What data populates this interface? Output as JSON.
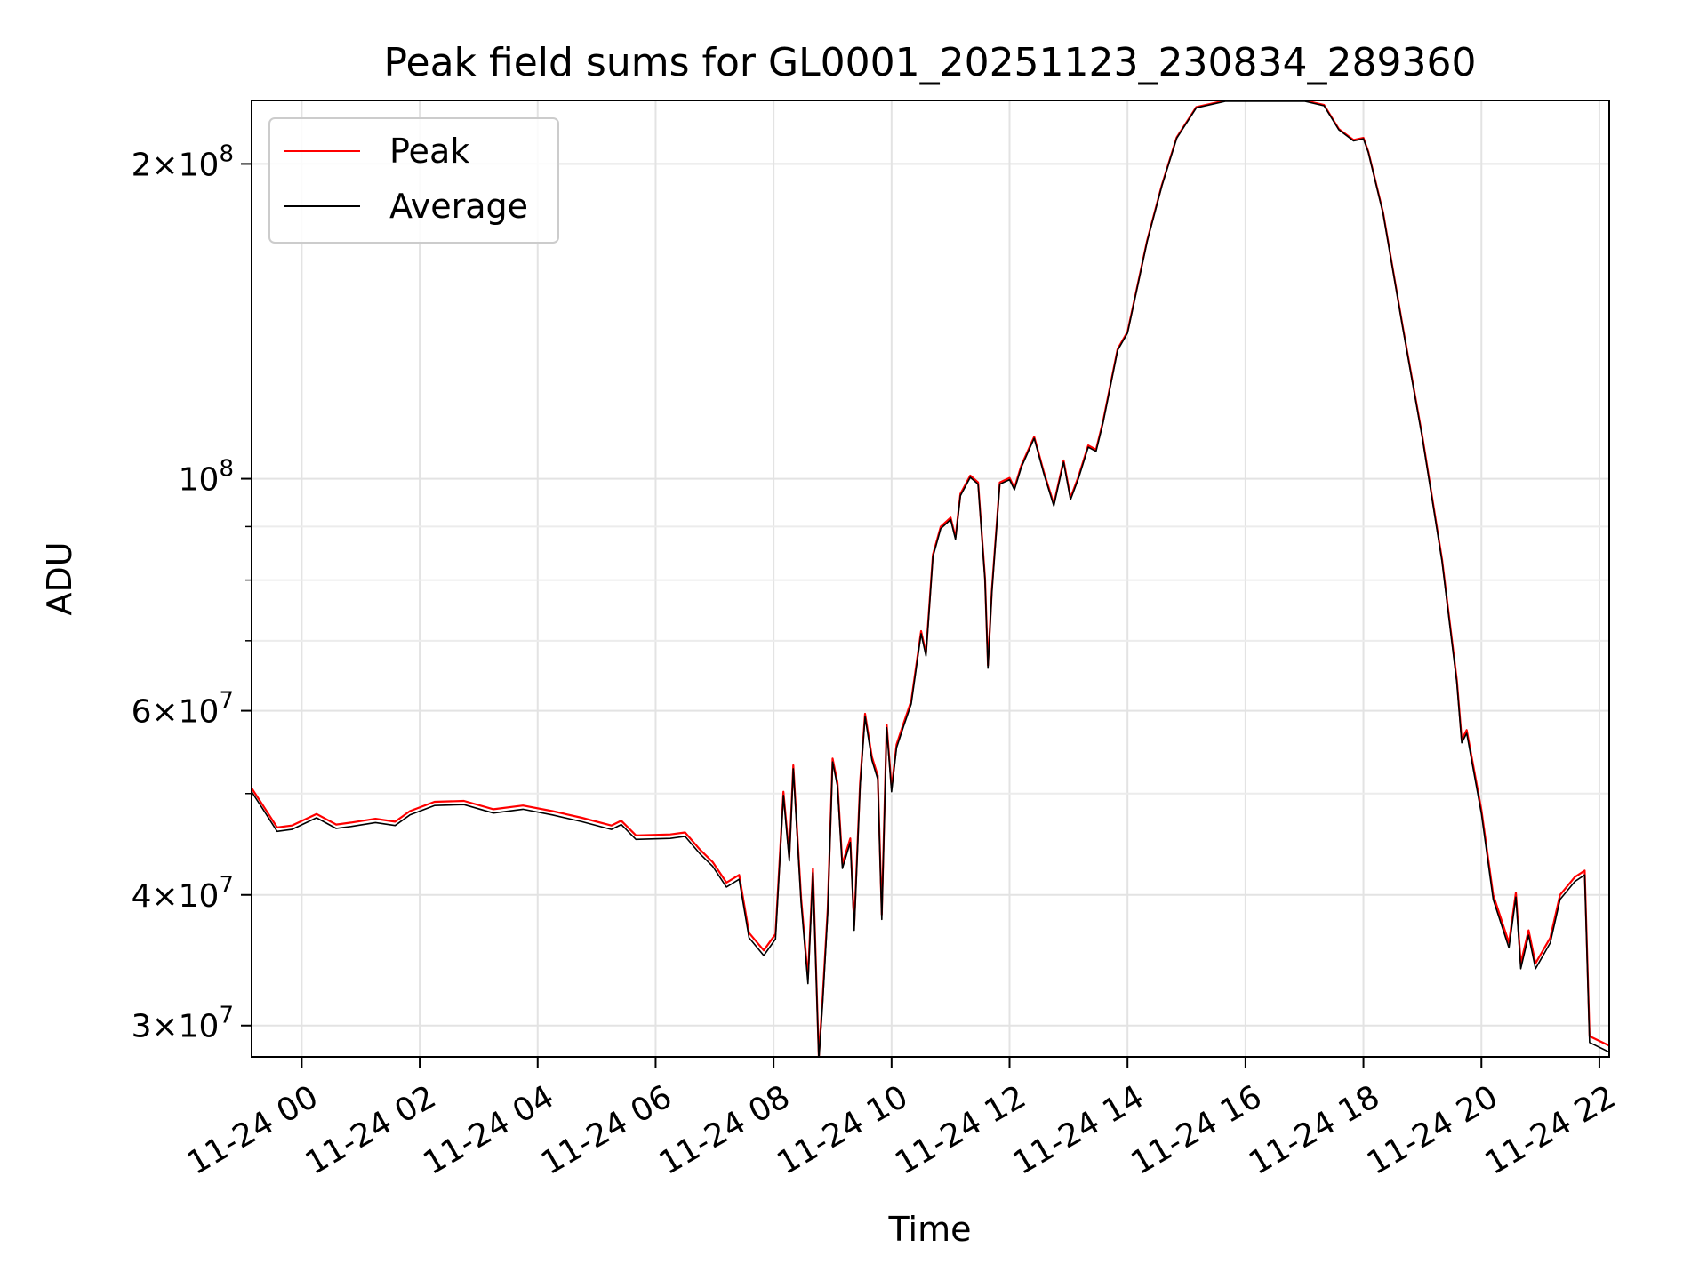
{
  "chart_data": {
    "type": "line",
    "title": "Peak field sums for GL0001_20251123_230834_289360",
    "xlabel": "Time",
    "ylabel": "ADU",
    "y_scale": "log",
    "ylim": [
      28000000,
      230000000
    ],
    "xlim": [
      "2025-11-23T23:09",
      "2025-11-24T22:10"
    ],
    "grid": true,
    "legend_position": "upper-left",
    "x_ticks": [
      {
        "t": "2025-11-24T00:00",
        "label": "11-24 00"
      },
      {
        "t": "2025-11-24T02:00",
        "label": "11-24 02"
      },
      {
        "t": "2025-11-24T04:00",
        "label": "11-24 04"
      },
      {
        "t": "2025-11-24T06:00",
        "label": "11-24 06"
      },
      {
        "t": "2025-11-24T08:00",
        "label": "11-24 08"
      },
      {
        "t": "2025-11-24T10:00",
        "label": "11-24 10"
      },
      {
        "t": "2025-11-24T12:00",
        "label": "11-24 12"
      },
      {
        "t": "2025-11-24T14:00",
        "label": "11-24 14"
      },
      {
        "t": "2025-11-24T16:00",
        "label": "11-24 16"
      },
      {
        "t": "2025-11-24T18:00",
        "label": "11-24 18"
      },
      {
        "t": "2025-11-24T20:00",
        "label": "11-24 20"
      },
      {
        "t": "2025-11-24T22:00",
        "label": "11-24 22"
      }
    ],
    "y_major_ticks": [
      {
        "value": 30000000,
        "mantissa": "3",
        "exp": "7"
      },
      {
        "value": 40000000,
        "mantissa": "4",
        "exp": "7"
      },
      {
        "value": 60000000,
        "mantissa": "6",
        "exp": "7"
      },
      {
        "value": 100000000,
        "mantissa": "",
        "exp": "8"
      },
      {
        "value": 200000000,
        "mantissa": "2",
        "exp": "8"
      }
    ],
    "y_minor_grid": [
      50000000,
      70000000,
      80000000,
      90000000
    ],
    "series": [
      {
        "name": "Peak",
        "color": "#ff0000",
        "points": [
          [
            "2025-11-23T23:09",
            50600000
          ],
          [
            "2025-11-23T23:20",
            48800000
          ],
          [
            "2025-11-23T23:35",
            46400000
          ],
          [
            "2025-11-23T23:50",
            46600000
          ],
          [
            "2025-11-24T00:15",
            47800000
          ],
          [
            "2025-11-24T00:35",
            46700000
          ],
          [
            "2025-11-24T00:50",
            46900000
          ],
          [
            "2025-11-24T01:15",
            47300000
          ],
          [
            "2025-11-24T01:35",
            47000000
          ],
          [
            "2025-11-24T01:50",
            48100000
          ],
          [
            "2025-11-24T02:15",
            49100000
          ],
          [
            "2025-11-24T02:45",
            49200000
          ],
          [
            "2025-11-24T03:15",
            48300000
          ],
          [
            "2025-11-24T03:45",
            48700000
          ],
          [
            "2025-11-24T04:15",
            48100000
          ],
          [
            "2025-11-24T04:45",
            47400000
          ],
          [
            "2025-11-24T05:15",
            46600000
          ],
          [
            "2025-11-24T05:25",
            47100000
          ],
          [
            "2025-11-24T05:40",
            45600000
          ],
          [
            "2025-11-24T06:15",
            45700000
          ],
          [
            "2025-11-24T06:30",
            45900000
          ],
          [
            "2025-11-24T06:45",
            44200000
          ],
          [
            "2025-11-24T06:58",
            43000000
          ],
          [
            "2025-11-24T07:12",
            41100000
          ],
          [
            "2025-11-24T07:25",
            41800000
          ],
          [
            "2025-11-24T07:35",
            36800000
          ],
          [
            "2025-11-24T07:50",
            35400000
          ],
          [
            "2025-11-24T08:02",
            36700000
          ],
          [
            "2025-11-24T08:10",
            50200000
          ],
          [
            "2025-11-24T08:16",
            43500000
          ],
          [
            "2025-11-24T08:20",
            53200000
          ],
          [
            "2025-11-24T08:28",
            39700000
          ],
          [
            "2025-11-24T08:35",
            33300000
          ],
          [
            "2025-11-24T08:40",
            42400000
          ],
          [
            "2025-11-24T08:46",
            28000000
          ],
          [
            "2025-11-24T08:50",
            32000000
          ],
          [
            "2025-11-24T08:55",
            38800000
          ],
          [
            "2025-11-24T09:00",
            54000000
          ],
          [
            "2025-11-24T09:05",
            51200000
          ],
          [
            "2025-11-24T09:10",
            42800000
          ],
          [
            "2025-11-24T09:18",
            45300000
          ],
          [
            "2025-11-24T09:22",
            37400000
          ],
          [
            "2025-11-24T09:28",
            51200000
          ],
          [
            "2025-11-24T09:33",
            59600000
          ],
          [
            "2025-11-24T09:40",
            54200000
          ],
          [
            "2025-11-24T09:46",
            52000000
          ],
          [
            "2025-11-24T09:50",
            38300000
          ],
          [
            "2025-11-24T09:55",
            58200000
          ],
          [
            "2025-11-24T10:00",
            50600000
          ],
          [
            "2025-11-24T10:05",
            55700000
          ],
          [
            "2025-11-24T10:12",
            58300000
          ],
          [
            "2025-11-24T10:20",
            61300000
          ],
          [
            "2025-11-24T10:30",
            71500000
          ],
          [
            "2025-11-24T10:35",
            68100000
          ],
          [
            "2025-11-24T10:42",
            84600000
          ],
          [
            "2025-11-24T10:50",
            90000000
          ],
          [
            "2025-11-24T11:00",
            91800000
          ],
          [
            "2025-11-24T11:05",
            87900000
          ],
          [
            "2025-11-24T11:10",
            96700000
          ],
          [
            "2025-11-24T11:20",
            100700000
          ],
          [
            "2025-11-24T11:28",
            99200000
          ],
          [
            "2025-11-24T11:35",
            80300000
          ],
          [
            "2025-11-24T11:38",
            66300000
          ],
          [
            "2025-11-24T11:42",
            78300000
          ],
          [
            "2025-11-24T11:50",
            99200000
          ],
          [
            "2025-11-24T12:00",
            100200000
          ],
          [
            "2025-11-24T12:05",
            98000000
          ],
          [
            "2025-11-24T12:12",
            103000000
          ],
          [
            "2025-11-24T12:25",
            109700000
          ],
          [
            "2025-11-24T12:35",
            101400000
          ],
          [
            "2025-11-24T12:45",
            94600000
          ],
          [
            "2025-11-24T12:55",
            104100000
          ],
          [
            "2025-11-24T13:02",
            95900000
          ],
          [
            "2025-11-24T13:10",
            100400000
          ],
          [
            "2025-11-24T13:20",
            107600000
          ],
          [
            "2025-11-24T13:28",
            106600000
          ],
          [
            "2025-11-24T13:35",
            113400000
          ],
          [
            "2025-11-24T13:50",
            133100000
          ],
          [
            "2025-11-24T14:00",
            138200000
          ],
          [
            "2025-11-24T14:20",
            169000000
          ],
          [
            "2025-11-24T14:35",
            191000000
          ],
          [
            "2025-11-24T14:50",
            212000000
          ],
          [
            "2025-11-24T15:10",
            226700000
          ],
          [
            "2025-11-24T15:40",
            230000000
          ],
          [
            "2025-11-24T16:20",
            230000000
          ],
          [
            "2025-11-24T17:00",
            230000000
          ],
          [
            "2025-11-24T17:20",
            227700000
          ],
          [
            "2025-11-24T17:35",
            216000000
          ],
          [
            "2025-11-24T17:50",
            210800000
          ],
          [
            "2025-11-24T18:00",
            211800000
          ],
          [
            "2025-11-24T18:05",
            205500000
          ],
          [
            "2025-11-24T18:20",
            179700000
          ],
          [
            "2025-11-24T18:40",
            139800000
          ],
          [
            "2025-11-24T19:00",
            109700000
          ],
          [
            "2025-11-24T19:20",
            83700000
          ],
          [
            "2025-11-24T19:35",
            64200000
          ],
          [
            "2025-11-24T19:40",
            56300000
          ],
          [
            "2025-11-24T19:45",
            57500000
          ],
          [
            "2025-11-24T20:00",
            48200000
          ],
          [
            "2025-11-24T20:12",
            40000000
          ],
          [
            "2025-11-24T20:28",
            36000000
          ],
          [
            "2025-11-24T20:35",
            40200000
          ],
          [
            "2025-11-24T20:40",
            34400000
          ],
          [
            "2025-11-24T20:48",
            37000000
          ],
          [
            "2025-11-24T20:55",
            34400000
          ],
          [
            "2025-11-24T21:10",
            36400000
          ],
          [
            "2025-11-24T21:20",
            40000000
          ],
          [
            "2025-11-24T21:35",
            41600000
          ],
          [
            "2025-11-24T21:45",
            42200000
          ],
          [
            "2025-11-24T21:50",
            29300000
          ],
          [
            "2025-11-24T22:10",
            28700000
          ]
        ]
      },
      {
        "name": "Average",
        "color": "#000000",
        "points": [
          [
            "2025-11-23T23:09",
            50200000
          ],
          [
            "2025-11-23T23:20",
            48400000
          ],
          [
            "2025-11-23T23:35",
            46000000
          ],
          [
            "2025-11-23T23:50",
            46200000
          ],
          [
            "2025-11-24T00:15",
            47400000
          ],
          [
            "2025-11-24T00:35",
            46300000
          ],
          [
            "2025-11-24T00:50",
            46500000
          ],
          [
            "2025-11-24T01:15",
            46900000
          ],
          [
            "2025-11-24T01:35",
            46600000
          ],
          [
            "2025-11-24T01:50",
            47700000
          ],
          [
            "2025-11-24T02:15",
            48700000
          ],
          [
            "2025-11-24T02:45",
            48800000
          ],
          [
            "2025-11-24T03:15",
            47900000
          ],
          [
            "2025-11-24T03:45",
            48300000
          ],
          [
            "2025-11-24T04:15",
            47700000
          ],
          [
            "2025-11-24T04:45",
            47000000
          ],
          [
            "2025-11-24T05:15",
            46200000
          ],
          [
            "2025-11-24T05:25",
            46700000
          ],
          [
            "2025-11-24T05:40",
            45200000
          ],
          [
            "2025-11-24T06:15",
            45300000
          ],
          [
            "2025-11-24T06:30",
            45500000
          ],
          [
            "2025-11-24T06:45",
            43800000
          ],
          [
            "2025-11-24T06:58",
            42600000
          ],
          [
            "2025-11-24T07:12",
            40700000
          ],
          [
            "2025-11-24T07:25",
            41400000
          ],
          [
            "2025-11-24T07:35",
            36400000
          ],
          [
            "2025-11-24T07:50",
            35000000
          ],
          [
            "2025-11-24T08:02",
            36300000
          ],
          [
            "2025-11-24T08:10",
            49800000
          ],
          [
            "2025-11-24T08:16",
            43100000
          ],
          [
            "2025-11-24T08:20",
            52800000
          ],
          [
            "2025-11-24T08:28",
            39300000
          ],
          [
            "2025-11-24T08:35",
            32900000
          ],
          [
            "2025-11-24T08:40",
            42000000
          ],
          [
            "2025-11-24T08:46",
            27800000
          ],
          [
            "2025-11-24T08:50",
            31600000
          ],
          [
            "2025-11-24T08:55",
            38400000
          ],
          [
            "2025-11-24T09:00",
            53600000
          ],
          [
            "2025-11-24T09:05",
            50800000
          ],
          [
            "2025-11-24T09:10",
            42400000
          ],
          [
            "2025-11-24T09:18",
            44900000
          ],
          [
            "2025-11-24T09:22",
            37000000
          ],
          [
            "2025-11-24T09:28",
            50800000
          ],
          [
            "2025-11-24T09:33",
            59200000
          ],
          [
            "2025-11-24T09:40",
            53800000
          ],
          [
            "2025-11-24T09:46",
            51600000
          ],
          [
            "2025-11-24T09:50",
            37900000
          ],
          [
            "2025-11-24T09:55",
            57800000
          ],
          [
            "2025-11-24T10:00",
            50200000
          ],
          [
            "2025-11-24T10:05",
            55300000
          ],
          [
            "2025-11-24T10:12",
            57900000
          ],
          [
            "2025-11-24T10:20",
            60900000
          ],
          [
            "2025-11-24T10:30",
            71100000
          ],
          [
            "2025-11-24T10:35",
            67700000
          ],
          [
            "2025-11-24T10:42",
            84200000
          ],
          [
            "2025-11-24T10:50",
            89600000
          ],
          [
            "2025-11-24T11:00",
            91400000
          ],
          [
            "2025-11-24T11:05",
            87500000
          ],
          [
            "2025-11-24T11:10",
            96300000
          ],
          [
            "2025-11-24T11:20",
            100300000
          ],
          [
            "2025-11-24T11:28",
            98800000
          ],
          [
            "2025-11-24T11:35",
            79900000
          ],
          [
            "2025-11-24T11:38",
            65900000
          ],
          [
            "2025-11-24T11:42",
            77900000
          ],
          [
            "2025-11-24T11:50",
            98800000
          ],
          [
            "2025-11-24T12:00",
            99800000
          ],
          [
            "2025-11-24T12:05",
            97600000
          ],
          [
            "2025-11-24T12:12",
            102600000
          ],
          [
            "2025-11-24T12:25",
            109300000
          ],
          [
            "2025-11-24T12:35",
            101000000
          ],
          [
            "2025-11-24T12:45",
            94200000
          ],
          [
            "2025-11-24T12:55",
            103700000
          ],
          [
            "2025-11-24T13:02",
            95500000
          ],
          [
            "2025-11-24T13:10",
            100000000
          ],
          [
            "2025-11-24T13:20",
            107200000
          ],
          [
            "2025-11-24T13:28",
            106200000
          ],
          [
            "2025-11-24T13:35",
            113000000
          ],
          [
            "2025-11-24T13:50",
            132700000
          ],
          [
            "2025-11-24T14:00",
            137800000
          ],
          [
            "2025-11-24T14:20",
            168600000
          ],
          [
            "2025-11-24T14:35",
            190600000
          ],
          [
            "2025-11-24T14:50",
            211600000
          ],
          [
            "2025-11-24T15:10",
            226300000
          ],
          [
            "2025-11-24T15:40",
            229600000
          ],
          [
            "2025-11-24T16:20",
            229600000
          ],
          [
            "2025-11-24T17:00",
            229600000
          ],
          [
            "2025-11-24T17:20",
            227300000
          ],
          [
            "2025-11-24T17:35",
            215600000
          ],
          [
            "2025-11-24T17:50",
            210400000
          ],
          [
            "2025-11-24T18:00",
            211400000
          ],
          [
            "2025-11-24T18:05",
            205100000
          ],
          [
            "2025-11-24T18:20",
            179300000
          ],
          [
            "2025-11-24T18:40",
            139400000
          ],
          [
            "2025-11-24T19:00",
            109300000
          ],
          [
            "2025-11-24T19:20",
            83300000
          ],
          [
            "2025-11-24T19:35",
            63800000
          ],
          [
            "2025-11-24T19:40",
            55900000
          ],
          [
            "2025-11-24T19:45",
            57100000
          ],
          [
            "2025-11-24T20:00",
            47800000
          ],
          [
            "2025-11-24T20:12",
            39600000
          ],
          [
            "2025-11-24T20:28",
            35600000
          ],
          [
            "2025-11-24T20:35",
            39800000
          ],
          [
            "2025-11-24T20:40",
            34000000
          ],
          [
            "2025-11-24T20:48",
            36600000
          ],
          [
            "2025-11-24T20:55",
            34000000
          ],
          [
            "2025-11-24T21:10",
            36000000
          ],
          [
            "2025-11-24T21:20",
            39600000
          ],
          [
            "2025-11-24T21:35",
            41200000
          ],
          [
            "2025-11-24T21:45",
            41800000
          ],
          [
            "2025-11-24T21:50",
            28900000
          ],
          [
            "2025-11-24T22:10",
            28300000
          ]
        ]
      }
    ]
  }
}
